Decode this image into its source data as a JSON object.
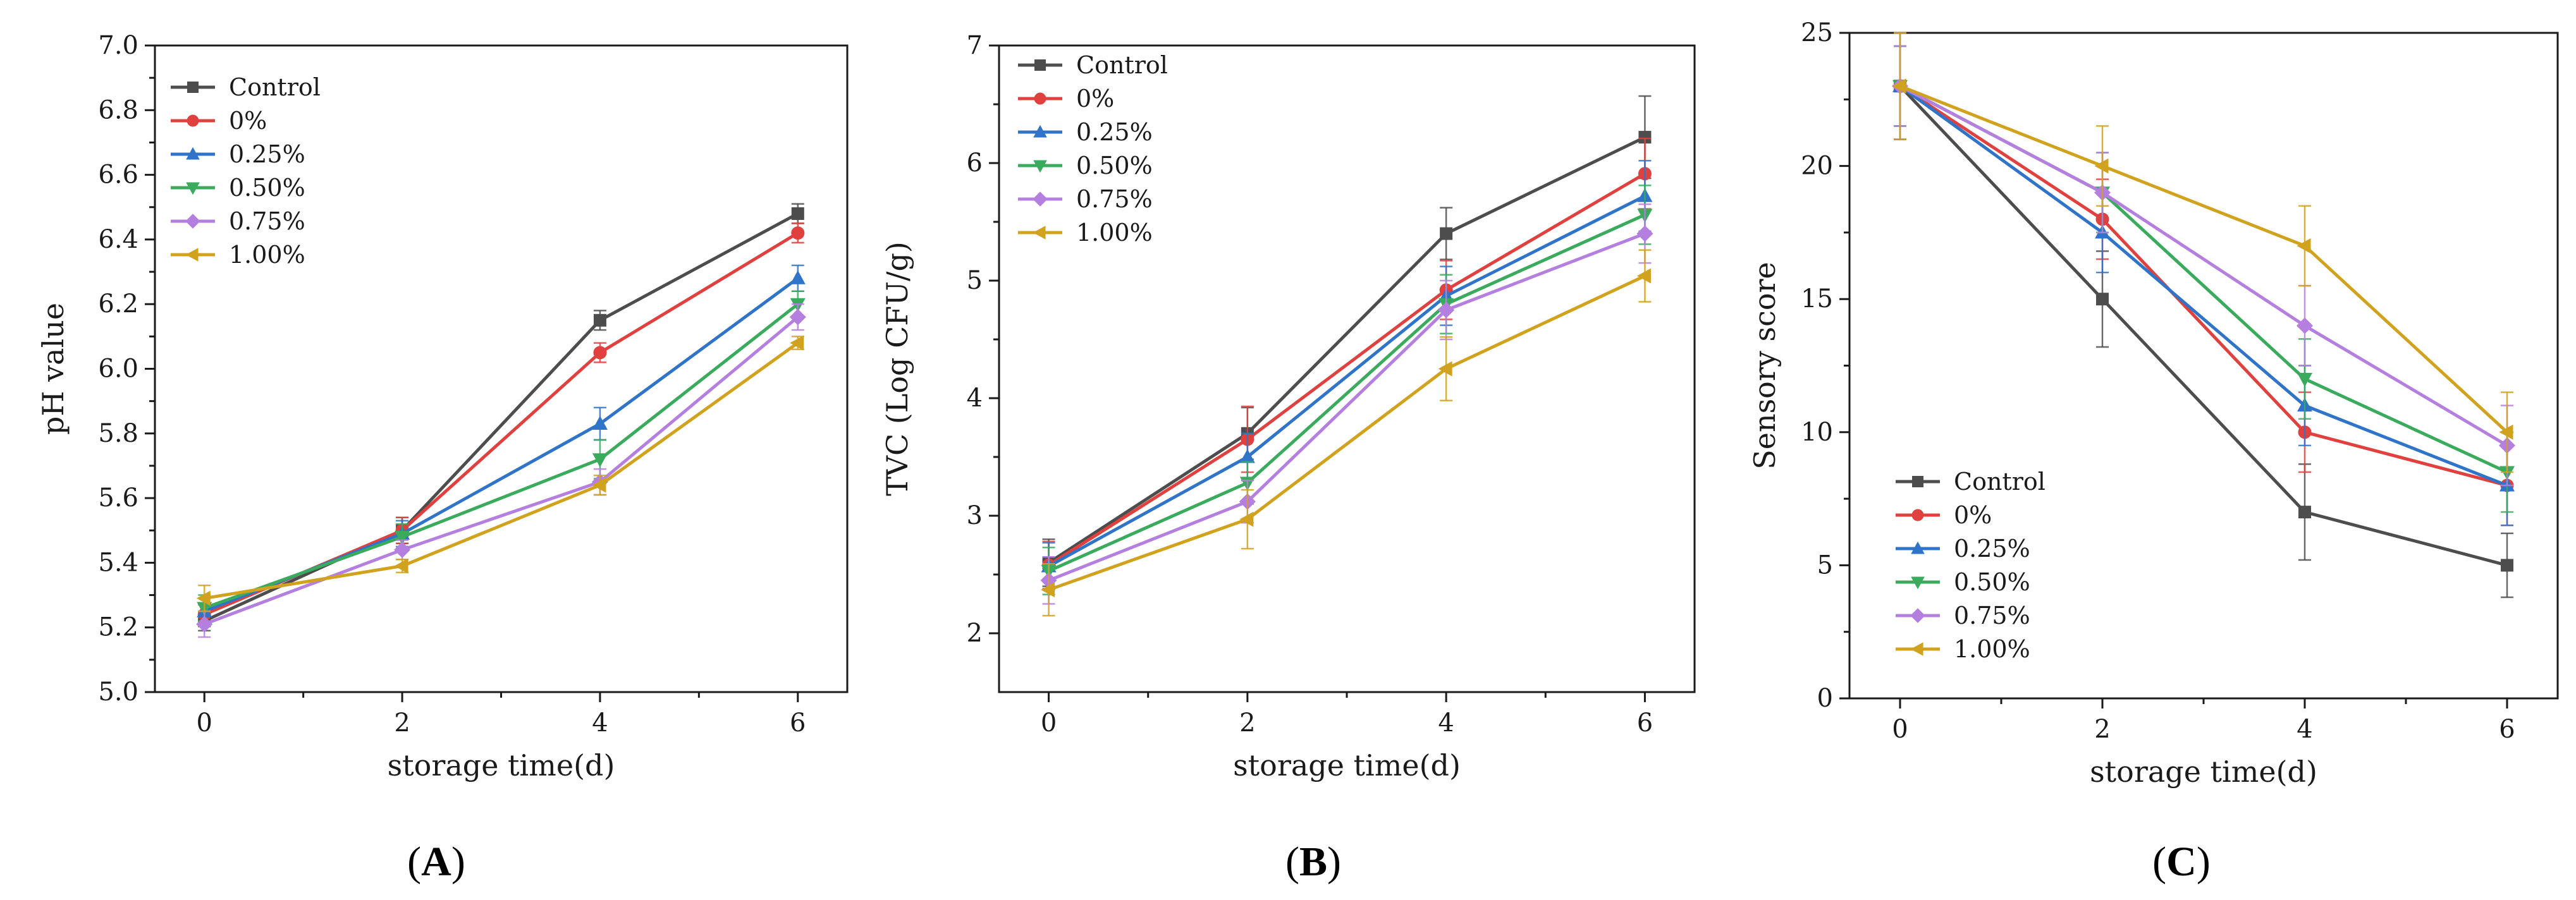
{
  "chart_data": [
    {
      "type": "line",
      "panel": "(A)",
      "panel_letter": "A",
      "xlabel": "storage time(d)",
      "ylabel": "pH value",
      "x": [
        0,
        2,
        4,
        6
      ],
      "xlim": [
        -0.5,
        6.5
      ],
      "ylim": [
        5.0,
        7.0
      ],
      "yticks": [
        5.0,
        5.2,
        5.4,
        5.6,
        5.8,
        6.0,
        6.2,
        6.4,
        6.6,
        6.8,
        7.0
      ],
      "ytick_labels": [
        "5.0",
        "5.2",
        "5.4",
        "5.6",
        "5.8",
        "6.0",
        "6.2",
        "6.4",
        "6.6",
        "6.8",
        "7.0"
      ],
      "xticks": [
        0,
        2,
        4,
        6
      ],
      "xtick_labels": [
        "0",
        "2",
        "4",
        "6"
      ],
      "legend_position": "top-left",
      "series": [
        {
          "name": "Control",
          "color": "#4d4d4d",
          "marker": "square",
          "values": [
            5.22,
            5.5,
            6.15,
            6.48
          ],
          "errors": [
            0.03,
            0.04,
            0.03,
            0.03
          ]
        },
        {
          "name": "0%",
          "color": "#e0413e",
          "marker": "circle",
          "values": [
            5.24,
            5.5,
            6.05,
            6.42
          ],
          "errors": [
            0.03,
            0.04,
            0.03,
            0.03
          ]
        },
        {
          "name": "0.25%",
          "color": "#2f74c8",
          "marker": "triangle-up",
          "values": [
            5.25,
            5.49,
            5.83,
            6.28
          ],
          "errors": [
            0.04,
            0.04,
            0.05,
            0.04
          ]
        },
        {
          "name": "0.50%",
          "color": "#3aaa5c",
          "marker": "triangle-down",
          "values": [
            5.26,
            5.48,
            5.72,
            6.2
          ],
          "errors": [
            0.04,
            0.04,
            0.06,
            0.04
          ]
        },
        {
          "name": "0.75%",
          "color": "#b57fe0",
          "marker": "diamond",
          "values": [
            5.21,
            5.44,
            5.65,
            6.16
          ],
          "errors": [
            0.04,
            0.03,
            0.04,
            0.04
          ]
        },
        {
          "name": "1.00%",
          "color": "#d1a21e",
          "marker": "triangle-left",
          "values": [
            5.29,
            5.39,
            5.64,
            6.08
          ],
          "errors": [
            0.04,
            0.02,
            0.03,
            0.02
          ]
        }
      ]
    },
    {
      "type": "line",
      "panel": "(B)",
      "panel_letter": "B",
      "xlabel": "storage time(d)",
      "ylabel": "TVC (Log CFU/g)",
      "x": [
        0,
        2,
        4,
        6
      ],
      "xlim": [
        -0.5,
        6.5
      ],
      "ylim": [
        1.5,
        7.0
      ],
      "yticks": [
        2,
        3,
        4,
        5,
        6,
        7
      ],
      "ytick_labels": [
        "2",
        "3",
        "4",
        "5",
        "6",
        "7"
      ],
      "xticks": [
        0,
        2,
        4,
        6
      ],
      "xtick_labels": [
        "0",
        "2",
        "4",
        "6"
      ],
      "legend_position": "top-left",
      "series": [
        {
          "name": "Control",
          "color": "#4d4d4d",
          "marker": "square",
          "values": [
            2.6,
            3.7,
            5.4,
            6.22
          ],
          "errors": [
            0.2,
            0.22,
            0.22,
            0.35
          ]
        },
        {
          "name": "0%",
          "color": "#e0413e",
          "marker": "circle",
          "values": [
            2.58,
            3.65,
            4.92,
            5.91
          ],
          "errors": [
            0.2,
            0.28,
            0.25,
            0.3
          ]
        },
        {
          "name": "0.25%",
          "color": "#2f74c8",
          "marker": "triangle-up",
          "values": [
            2.57,
            3.5,
            4.87,
            5.72
          ],
          "errors": [
            0.2,
            0.2,
            0.25,
            0.3
          ]
        },
        {
          "name": "0.50%",
          "color": "#3aaa5c",
          "marker": "triangle-down",
          "values": [
            2.53,
            3.28,
            4.8,
            5.56
          ],
          "errors": [
            0.2,
            0.18,
            0.25,
            0.25
          ]
        },
        {
          "name": "0.75%",
          "color": "#b57fe0",
          "marker": "diamond",
          "values": [
            2.45,
            3.12,
            4.75,
            5.4
          ],
          "errors": [
            0.2,
            0.18,
            0.25,
            0.25
          ]
        },
        {
          "name": "1.00%",
          "color": "#d1a21e",
          "marker": "triangle-left",
          "values": [
            2.37,
            2.97,
            4.25,
            5.04
          ],
          "errors": [
            0.22,
            0.25,
            0.27,
            0.22
          ]
        }
      ]
    },
    {
      "type": "line",
      "panel": "(C)",
      "panel_letter": "C",
      "xlabel": "storage time(d)",
      "ylabel": "Sensory score",
      "x": [
        0,
        2,
        4,
        6
      ],
      "xlim": [
        -0.5,
        6.5
      ],
      "ylim": [
        0,
        25
      ],
      "yticks": [
        0,
        5,
        10,
        15,
        20,
        25
      ],
      "ytick_labels": [
        "0",
        "5",
        "10",
        "15",
        "20",
        "25"
      ],
      "xticks": [
        0,
        2,
        4,
        6
      ],
      "xtick_labels": [
        "0",
        "2",
        "4",
        "6"
      ],
      "legend_position": "bottom-left",
      "series": [
        {
          "name": "Control",
          "color": "#4d4d4d",
          "marker": "square",
          "values": [
            23,
            15,
            7,
            5
          ],
          "errors": [
            2.0,
            1.8,
            1.8,
            1.2
          ]
        },
        {
          "name": "0%",
          "color": "#e0413e",
          "marker": "circle",
          "values": [
            23,
            18,
            10,
            8
          ],
          "errors": [
            1.5,
            1.5,
            1.5,
            1.5
          ]
        },
        {
          "name": "0.25%",
          "color": "#2f74c8",
          "marker": "triangle-up",
          "values": [
            23,
            17.5,
            11,
            8
          ],
          "errors": [
            1.5,
            1.5,
            1.5,
            1.5
          ]
        },
        {
          "name": "0.50%",
          "color": "#3aaa5c",
          "marker": "triangle-down",
          "values": [
            23,
            19,
            12,
            8.5
          ],
          "errors": [
            1.5,
            1.5,
            1.5,
            1.5
          ]
        },
        {
          "name": "0.75%",
          "color": "#b57fe0",
          "marker": "diamond",
          "values": [
            23,
            19,
            14,
            9.5
          ],
          "errors": [
            1.5,
            1.5,
            1.5,
            1.5
          ]
        },
        {
          "name": "1.00%",
          "color": "#d1a21e",
          "marker": "triangle-left",
          "values": [
            23,
            20,
            17,
            10
          ],
          "errors": [
            2.0,
            1.5,
            1.5,
            1.5
          ]
        }
      ]
    }
  ]
}
